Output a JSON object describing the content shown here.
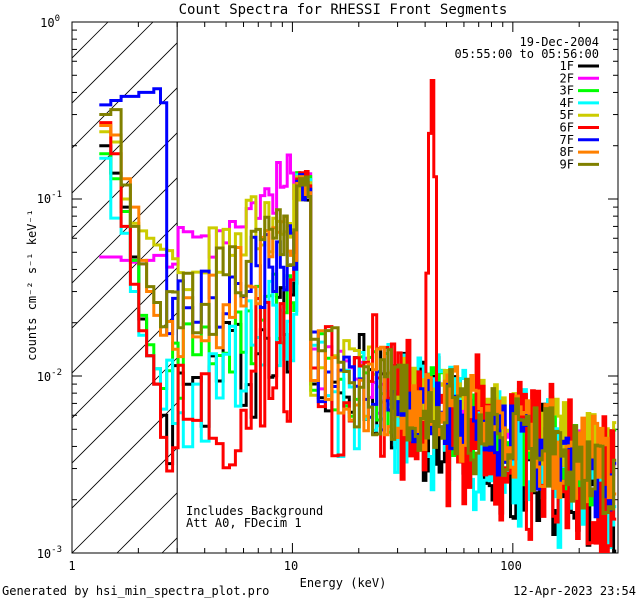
{
  "chart_data": {
    "type": "line",
    "title": "Count Spectra for RHESSI Front Segments",
    "xlabel": "Energy (keV)",
    "ylabel": "counts cm⁻² s⁻¹ keV⁻¹",
    "xscale": "log",
    "yscale": "log",
    "xlim": [
      1,
      300
    ],
    "ylim": [
      0.001,
      1
    ],
    "x_tick_labels": [
      "1",
      "10",
      "100"
    ],
    "y_tick_labels": [
      {
        "base": "10",
        "exp": "0"
      },
      {
        "base": "10",
        "exp": "-1"
      },
      {
        "base": "10",
        "exp": "-2"
      },
      {
        "base": "10",
        "exp": "-3"
      }
    ],
    "date": "19-Dec-2004",
    "time_range": "05:55:00 to 05:56:00",
    "attenuator_cutoff_kev": 3,
    "annotations": [
      "Includes Background",
      "Att A0, FDecim 1"
    ],
    "footer_left": "Generated by hsi_min_spectra_plot.pro",
    "footer_right": "12-Apr-2023 23:54",
    "series": [
      {
        "name": "1F",
        "color": "#000000",
        "lead": [
          0.2,
          0.14,
          0.09,
          0.047,
          0.021,
          0.013,
          0.009,
          0.006
        ],
        "bg": 0.007,
        "jit": 0.75,
        "hi": 0.0023
      },
      {
        "name": "2F",
        "color": "#ff00ff",
        "lead": [
          0.047,
          0.047,
          0.045,
          0.044,
          0.043,
          0.045,
          0.048,
          0.048
        ],
        "bg": 0.05,
        "jit": 0.3,
        "hi": 0.0032
      },
      {
        "name": "3F",
        "color": "#00ff00",
        "lead": [
          0.18,
          0.13,
          0.085,
          0.045,
          0.022,
          0.015,
          0.011,
          0.0085
        ],
        "bg": 0.011,
        "jit": 0.5,
        "hi": 0.003
      },
      {
        "name": "4F",
        "color": "#00ffff",
        "lead": [
          0.17,
          0.078,
          0.064,
          0.03,
          0.017,
          0.013,
          0.011,
          0.0065
        ],
        "bg": 0.008,
        "jit": 0.85,
        "hi": 0.0023
      },
      {
        "name": "5F",
        "color": "#cccc00",
        "lead": [
          0.24,
          0.21,
          0.1,
          0.073,
          0.066,
          0.06,
          0.055,
          0.052
        ],
        "bg": 0.035,
        "jit": 0.4,
        "hi": 0.004
      },
      {
        "name": "6F",
        "color": "#ff0000",
        "lead": [
          0.27,
          0.18,
          0.07,
          0.033,
          0.018,
          0.013,
          0.009,
          0.0045
        ],
        "bg": 0.006,
        "jit": 0.95,
        "hi": 0.0025,
        "peak": {
          "x": 43,
          "y": 0.55
        }
      },
      {
        "name": "7F",
        "color": "#0000ff",
        "lead": [
          0.34,
          0.36,
          0.38,
          0.38,
          0.4,
          0.4,
          0.42,
          0.35
        ],
        "bg": 0.02,
        "jit": 0.45,
        "hi": 0.0025
      },
      {
        "name": "8F",
        "color": "#ff8000",
        "lead": [
          0.26,
          0.23,
          0.13,
          0.09,
          0.045,
          0.03,
          0.022,
          0.017
        ],
        "bg": 0.018,
        "jit": 0.55,
        "hi": 0.0032
      },
      {
        "name": "9F",
        "color": "#808000",
        "lead": [
          0.3,
          0.32,
          0.12,
          0.07,
          0.043,
          0.032,
          0.026,
          0.019
        ],
        "bg": 0.02,
        "jit": 0.55,
        "hi": 0.0028
      }
    ]
  }
}
